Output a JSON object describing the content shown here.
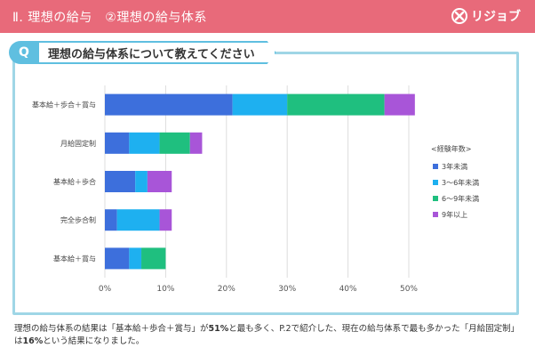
{
  "header": {
    "title": "Ⅱ. 理想の給与　②理想の給与体系",
    "brand": "リジョブ"
  },
  "question": {
    "badge": "Q",
    "text": "理想の給与体系について教えてください"
  },
  "caption": {
    "part1": "理想の給与体系の結果は「基本給＋歩合＋賞与」が",
    "bold1": "51%",
    "part2": "と最も多く、P.2で紹介した、現在の給与体系で最も多かった「月給固定制」は",
    "bold2": "16%",
    "part3": "という結果になりました。"
  },
  "colors": {
    "header": "#e86a7a",
    "accent": "#5fbfe0",
    "frame": "#9fd6e6"
  },
  "chart_data": {
    "type": "bar",
    "orientation": "horizontal",
    "stacked": true,
    "categories": [
      "基本給＋歩合＋賞与",
      "月給固定制",
      "基本給＋歩合",
      "完全歩合制",
      "基本給＋賞与"
    ],
    "legend_title": "<経験年数>",
    "series": [
      {
        "name": "3年未満",
        "color": "#3d6fdc",
        "values": [
          21,
          4,
          5,
          2,
          4
        ]
      },
      {
        "name": "3～6年未満",
        "color": "#1eb0f0",
        "values": [
          9,
          5,
          2,
          7,
          2
        ]
      },
      {
        "name": "6～9年未満",
        "color": "#1fbf7f",
        "values": [
          16,
          5,
          0,
          0,
          4
        ]
      },
      {
        "name": "9年以上",
        "color": "#a855d8",
        "values": [
          5,
          2,
          4,
          2,
          0
        ]
      }
    ],
    "xlim": [
      0,
      50
    ],
    "xticks": [
      "0%",
      "10%",
      "20%",
      "30%",
      "40%",
      "50%"
    ],
    "legend_position": "right",
    "grid": "vertical"
  }
}
